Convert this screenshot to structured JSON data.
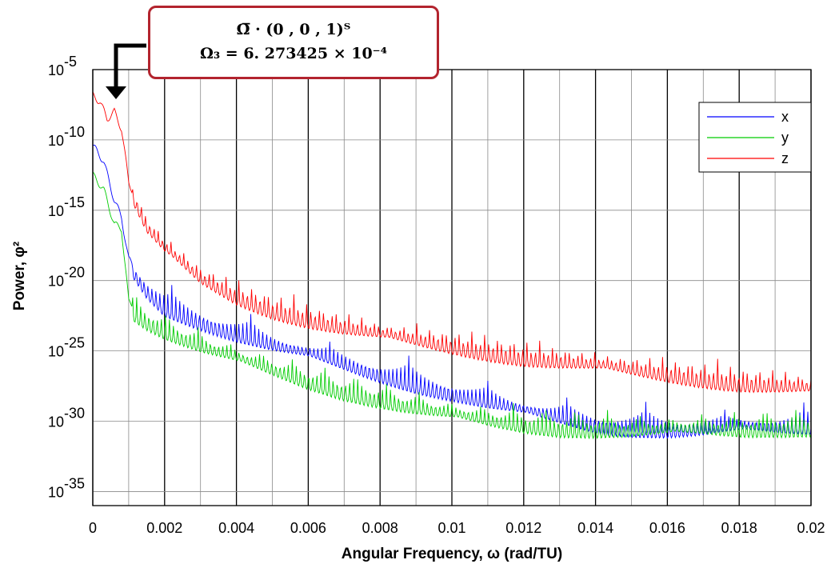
{
  "chart_data": {
    "type": "line",
    "xlabel": "Angular Frequency, ω (rad/TU)",
    "ylabel": "Power, φ²",
    "xlim": [
      0,
      0.02
    ],
    "ylim_log10": [
      -36,
      -5
    ],
    "yscale": "log",
    "grid": true,
    "legend_position": "top-right",
    "x_ticks": [
      "0",
      "0.002",
      "0.004",
      "0.006",
      "0.008",
      "0.01",
      "0.012",
      "0.014",
      "0.016",
      "0.018",
      "0.02"
    ],
    "y_ticks": [
      {
        "base": "10",
        "exp": "-5"
      },
      {
        "base": "10",
        "exp": "-10"
      },
      {
        "base": "10",
        "exp": "-15"
      },
      {
        "base": "10",
        "exp": "-20"
      },
      {
        "base": "10",
        "exp": "-25"
      },
      {
        "base": "10",
        "exp": "-30"
      },
      {
        "base": "10",
        "exp": "-35"
      }
    ],
    "series": [
      {
        "name": "x",
        "color": "#0000ff",
        "x": [
          0,
          0.0003,
          0.0006,
          0.0008,
          0.001,
          0.0015,
          0.002,
          0.003,
          0.004,
          0.005,
          0.006,
          0.007,
          0.008,
          0.009,
          0.01,
          0.011,
          0.012,
          0.013,
          0.014,
          0.015,
          0.016,
          0.017,
          0.018,
          0.019,
          0.02
        ],
        "log10_y": [
          -10.4,
          -11.5,
          -14.3,
          -15.5,
          -18.5,
          -20.3,
          -21.5,
          -22.4,
          -23.3,
          -24.1,
          -24.8,
          -25.5,
          -26.2,
          -26.9,
          -27.5,
          -28.2,
          -28.8,
          -29.3,
          -29.8,
          -30.0,
          -30.1,
          -30.1,
          -30.0,
          -30.0,
          -29.9
        ]
      },
      {
        "name": "y",
        "color": "#00cc00",
        "x": [
          0,
          0.0003,
          0.0006,
          0.0008,
          0.001,
          0.0015,
          0.002,
          0.003,
          0.004,
          0.005,
          0.006,
          0.007,
          0.008,
          0.009,
          0.01,
          0.011,
          0.012,
          0.013,
          0.014,
          0.015,
          0.016,
          0.017,
          0.018,
          0.019,
          0.02
        ],
        "log10_y": [
          -12.5,
          -13.5,
          -16.0,
          -16.3,
          -21.5,
          -22.4,
          -23.1,
          -24.2,
          -25.1,
          -25.9,
          -26.7,
          -27.4,
          -28.0,
          -28.6,
          -29.1,
          -29.5,
          -29.8,
          -30.0,
          -30.1,
          -30.2,
          -30.2,
          -30.1,
          -30.1,
          -30.0,
          -30.0
        ]
      },
      {
        "name": "z",
        "color": "#ff0000",
        "x": [
          0,
          0.0002,
          0.0004,
          0.0006,
          0.0008,
          0.001,
          0.0015,
          0.002,
          0.003,
          0.004,
          0.005,
          0.006,
          0.007,
          0.008,
          0.009,
          0.01,
          0.011,
          0.012,
          0.013,
          0.014,
          0.015,
          0.016,
          0.017,
          0.018,
          0.019,
          0.02
        ],
        "log10_y": [
          -6.8,
          -7.3,
          -8.5,
          -8.0,
          -9.2,
          -13.0,
          -15.8,
          -17.3,
          -19.4,
          -20.7,
          -21.6,
          -22.3,
          -22.9,
          -23.4,
          -23.8,
          -24.2,
          -24.6,
          -25.0,
          -25.3,
          -25.6,
          -25.9,
          -26.2,
          -26.5,
          -26.8,
          -27.0,
          -27.2
        ]
      }
    ],
    "annotation": {
      "line1": "Ω̅ · (0 , 0 , 1)ᵀ",
      "line2": "Ω₃ = 6. 273425 × 10⁻⁴"
    }
  }
}
